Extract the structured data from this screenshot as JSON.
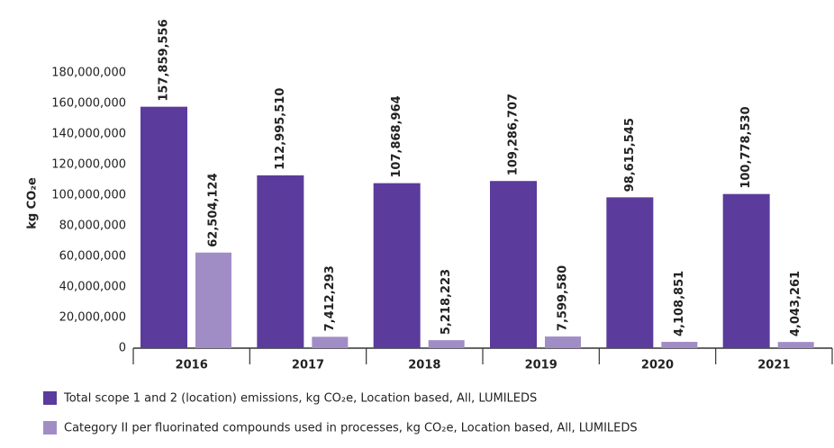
{
  "chart_data": {
    "type": "bar",
    "y_axis_label": "kg CO₂e",
    "categories": [
      "2016",
      "2017",
      "2018",
      "2019",
      "2020",
      "2021"
    ],
    "series": [
      {
        "name": "Total scope 1 and 2 (location) emissions, kg CO₂e, Location based, All, LUMILEDS",
        "color": "#5b3b9c",
        "values": [
          157859556,
          112995510,
          107868964,
          109286707,
          98615545,
          100778530
        ],
        "value_labels": [
          "157,859,556",
          "112,995,510",
          "107,868,964",
          "109,286,707",
          "98,615,545",
          "100,778,530"
        ]
      },
      {
        "name": "Category II per fluorinated compounds used in processes, kg CO₂e, Location based, All, LUMILEDS",
        "color": "#a18dc6",
        "values": [
          62504124,
          7412293,
          5218223,
          7599580,
          4108851,
          4043261
        ],
        "value_labels": [
          "62,504,124",
          "7,412,293",
          "5,218,223",
          "7,599,580",
          "4,108,851",
          "4,043,261"
        ]
      }
    ],
    "ylim": [
      0,
      180000000
    ],
    "yticks": [
      0,
      {
        "value": 20000000,
        "label": "20,000,000"
      },
      {
        "value": 40000000,
        "label": "40,000,000"
      },
      {
        "value": 60000000,
        "label": "60,000,000"
      },
      {
        "value": 80000000,
        "label": "80,000,000"
      },
      {
        "value": 100000000,
        "label": "100,000,000"
      },
      {
        "value": 120000000,
        "label": "120,000,000"
      },
      {
        "value": 140000000,
        "label": "140,000,000"
      },
      {
        "value": 160000000,
        "label": "160,000,000"
      },
      {
        "value": 180000000,
        "label": "180,000,000"
      }
    ],
    "grid": false
  }
}
